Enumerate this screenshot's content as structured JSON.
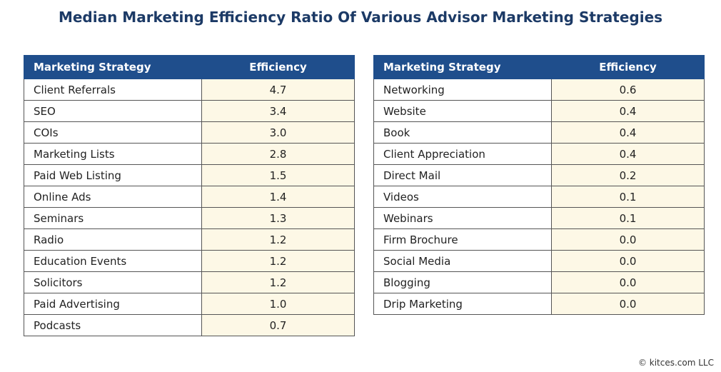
{
  "title": "Median Marketing Efficiency Ratio Of Various Advisor Marketing Strategies",
  "tables": [
    {
      "header": [
        "Marketing Strategy",
        "Efficiency"
      ],
      "rows": [
        [
          "Client Referrals",
          "4.7"
        ],
        [
          "SEO",
          "3.4"
        ],
        [
          "COIs",
          "3.0"
        ],
        [
          "Marketing Lists",
          "2.8"
        ],
        [
          "Paid Web Listing",
          "1.5"
        ],
        [
          "Online Ads",
          "1.4"
        ],
        [
          "Seminars",
          "1.3"
        ],
        [
          "Radio",
          "1.2"
        ],
        [
          "Education Events",
          "1.2"
        ],
        [
          "Solicitors",
          "1.2"
        ],
        [
          "Paid Advertising",
          "1.0"
        ],
        [
          "Podcasts",
          "0.7"
        ]
      ]
    },
    {
      "header": [
        "Marketing Strategy",
        "Efficiency"
      ],
      "rows": [
        [
          "Networking",
          "0.6"
        ],
        [
          "Website",
          "0.4"
        ],
        [
          "Book",
          "0.4"
        ],
        [
          "Client Appreciation",
          "0.4"
        ],
        [
          "Direct Mail",
          "0.2"
        ],
        [
          "Videos",
          "0.1"
        ],
        [
          "Webinars",
          "0.1"
        ],
        [
          "Firm Brochure",
          "0.0"
        ],
        [
          "Social Media",
          "0.0"
        ],
        [
          "Blogging",
          "0.0"
        ],
        [
          "Drip Marketing",
          "0.0"
        ]
      ]
    }
  ],
  "footer": "© kitces.com LLC"
}
